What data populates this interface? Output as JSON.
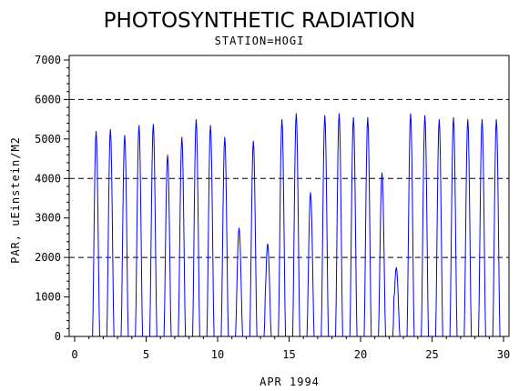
{
  "chart_data": {
    "type": "line",
    "title": "PHOTOSYNTHETIC RADIATION",
    "subtitle": "STATION=HOGI",
    "xlabel": "APR 1994",
    "ylabel": "PAR, uEinstein/M2",
    "xlim": [
      0,
      30
    ],
    "ylim": [
      0,
      7000
    ],
    "x_ticks": [
      0,
      5,
      10,
      15,
      20,
      25,
      30
    ],
    "y_ticks": [
      0,
      1000,
      2000,
      3000,
      4000,
      5000,
      6000,
      7000
    ],
    "reference_lines": [
      2000,
      4000,
      6000
    ],
    "colors": {
      "series": "#0000ff",
      "axes": "#000000",
      "reference_lines": "#000000"
    },
    "grid": false,
    "daily_peaks": [
      {
        "day": 1,
        "peak": 5200,
        "secondary": 0
      },
      {
        "day": 2,
        "peak": 5250,
        "secondary": 350
      },
      {
        "day": 3,
        "peak": 5100,
        "secondary": 0
      },
      {
        "day": 4,
        "peak": 5350,
        "secondary": 0
      },
      {
        "day": 5,
        "peak": 5380,
        "secondary": 150
      },
      {
        "day": 6,
        "peak": 4600,
        "secondary": 0
      },
      {
        "day": 7,
        "peak": 5050,
        "secondary": 0
      },
      {
        "day": 8,
        "peak": 5500,
        "secondary": 0
      },
      {
        "day": 9,
        "peak": 5350,
        "secondary": 0
      },
      {
        "day": 10,
        "peak": 5050,
        "secondary": 0
      },
      {
        "day": 11,
        "peak": 2750,
        "secondary": 0
      },
      {
        "day": 12,
        "peak": 4950,
        "secondary": 250
      },
      {
        "day": 13,
        "peak": 2350,
        "secondary": 1100
      },
      {
        "day": 14,
        "peak": 5500,
        "secondary": 0
      },
      {
        "day": 15,
        "peak": 5650,
        "secondary": 0
      },
      {
        "day": 16,
        "peak": 3650,
        "secondary": 800
      },
      {
        "day": 17,
        "peak": 5600,
        "secondary": 0
      },
      {
        "day": 18,
        "peak": 5650,
        "secondary": 0
      },
      {
        "day": 19,
        "peak": 5550,
        "secondary": 0
      },
      {
        "day": 20,
        "peak": 5550,
        "secondary": 0
      },
      {
        "day": 21,
        "peak": 4150,
        "secondary": 0
      },
      {
        "day": 22,
        "peak": 1750,
        "secondary": 1000
      },
      {
        "day": 23,
        "peak": 5650,
        "secondary": 0
      },
      {
        "day": 24,
        "peak": 5600,
        "secondary": 0
      },
      {
        "day": 25,
        "peak": 5500,
        "secondary": 0
      },
      {
        "day": 26,
        "peak": 5550,
        "secondary": 0
      },
      {
        "day": 27,
        "peak": 5500,
        "secondary": 0
      },
      {
        "day": 28,
        "peak": 5500,
        "secondary": 0
      },
      {
        "day": 29,
        "peak": 5500,
        "secondary": 0
      }
    ]
  }
}
